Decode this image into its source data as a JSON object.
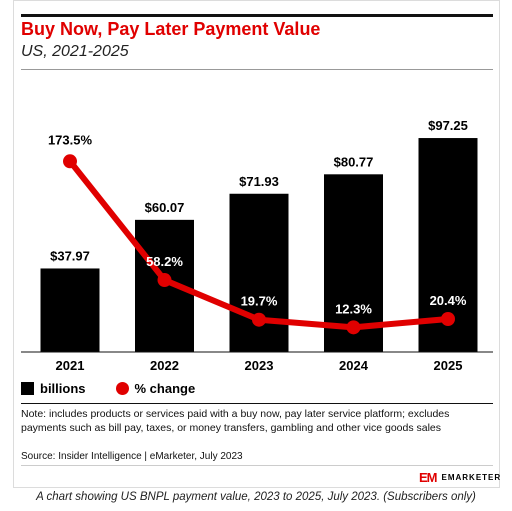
{
  "header": {
    "title": "Buy Now, Pay Later Payment Value",
    "subtitle": "US, 2021-2025"
  },
  "legend": {
    "bars_label": "billions",
    "line_label": "% change"
  },
  "note": "Note: includes products or services paid with a buy now, pay later service platform; excludes payments such as bill pay, taxes, or money transfers, gambling and other vice goods sales",
  "source": "Source: Insider Intelligence | eMarketer, July 2023",
  "logo": {
    "mark": "EM",
    "text": "EMARKETER"
  },
  "caption": "A chart showing US BNPL payment value, 2023 to 2025, July 2023. (Subscribers only)",
  "colors": {
    "bar": "#000000",
    "line": "#e00000",
    "title": "#e00000"
  },
  "chart_data": {
    "type": "bar",
    "categories": [
      "2021",
      "2022",
      "2023",
      "2024",
      "2025"
    ],
    "series": [
      {
        "name": "billions",
        "type": "bar",
        "values": [
          37.97,
          60.07,
          71.93,
          80.77,
          97.25
        ],
        "labels": [
          "$37.97",
          "$60.07",
          "$71.93",
          "$80.77",
          "$97.25"
        ]
      },
      {
        "name": "% change",
        "type": "line",
        "values": [
          173.5,
          58.2,
          19.7,
          12.3,
          20.4
        ],
        "labels": [
          "173.5%",
          "58.2%",
          "19.7%",
          "12.3%",
          "20.4%"
        ]
      }
    ],
    "title": "Buy Now, Pay Later Payment Value",
    "subtitle": "US, 2021-2025",
    "legend": "bottom-left",
    "grid": false
  }
}
